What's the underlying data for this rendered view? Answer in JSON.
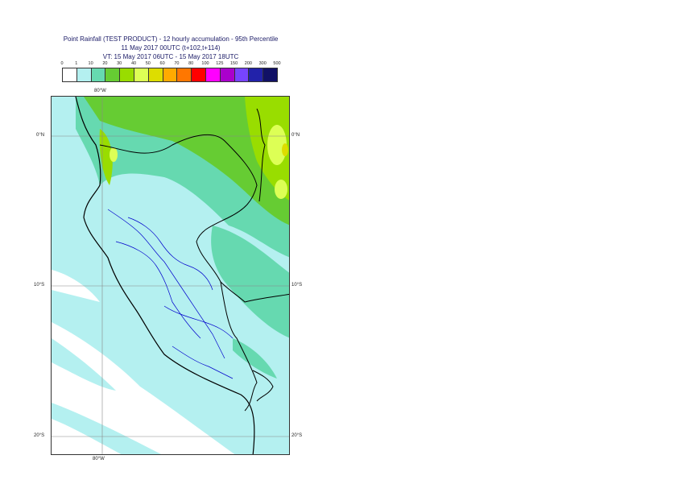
{
  "title": {
    "line1": "Point Rainfall (TEST PRODUCT) - 12 hourly accumulation - 95th Percentile",
    "line2": "11 May 2017 00UTC (t+102,t+114)",
    "line3": "VT: 15 May 2017 06UTC - 15 May 2017 18UTC"
  },
  "legend": {
    "thresholds": [
      "0",
      "1",
      "10",
      "20",
      "30",
      "40",
      "50",
      "60",
      "70",
      "80",
      "100",
      "125",
      "150",
      "200",
      "300",
      "500"
    ],
    "colors": [
      "#ffffff",
      "#b4f0f0",
      "#66d9b0",
      "#66cc33",
      "#99dd00",
      "#ddff55",
      "#dddd00",
      "#ffaa00",
      "#ff7700",
      "#ff0000",
      "#ff00ff",
      "#aa00cc",
      "#7744ff",
      "#2222aa",
      "#111166"
    ]
  },
  "axes": {
    "top_lon": "80°W",
    "bottom_lon": "80°W",
    "lat_labels": [
      "0°N",
      "10°S",
      "20°S"
    ]
  }
}
